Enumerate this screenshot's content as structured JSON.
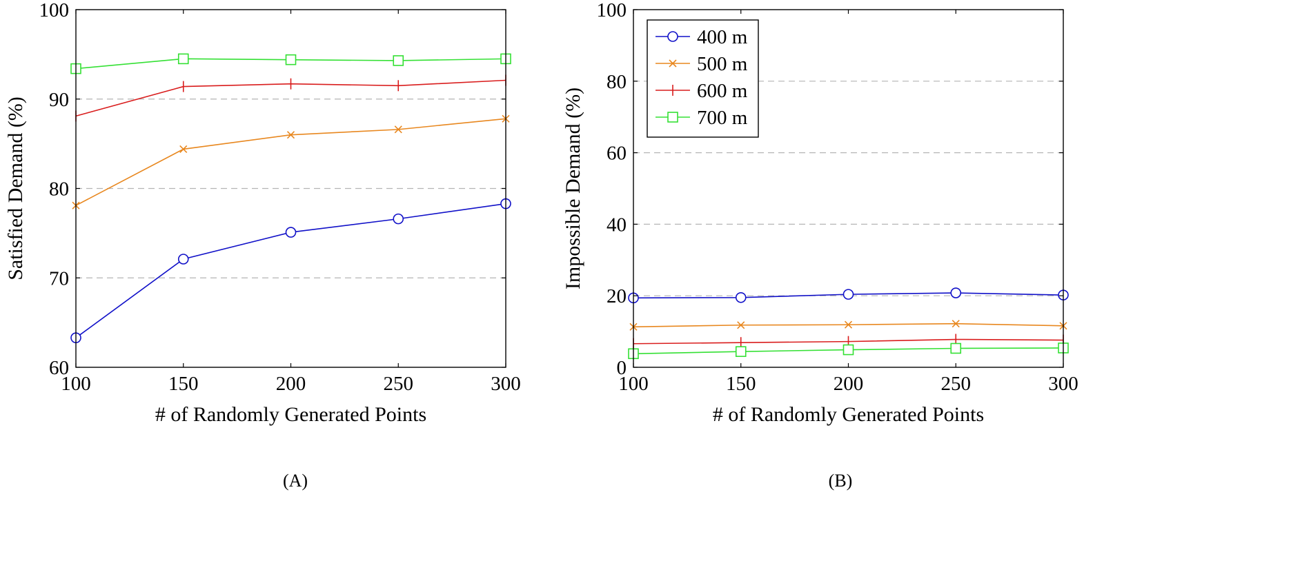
{
  "colors": {
    "400 m": "#1010c8",
    "500 m": "#e8871e",
    "600 m": "#d91c1c",
    "700 m": "#33e033",
    "grid": "#b4b4b4",
    "axis": "#000000"
  },
  "chart_data": [
    {
      "type": "line",
      "caption": "(A)",
      "xlabel": "# of Randomly Generated Points",
      "ylabel": "Satisfied Demand (%)",
      "x": [
        100,
        150,
        200,
        250,
        300
      ],
      "xlim": [
        100,
        300
      ],
      "ylim": [
        60,
        100
      ],
      "xticks": [
        100,
        150,
        200,
        250,
        300
      ],
      "yticks": [
        60,
        70,
        80,
        90,
        100
      ],
      "grid": "horizontal dashed",
      "legend": "none",
      "series": [
        {
          "name": "400 m",
          "marker": "circle",
          "values": [
            63.3,
            72.1,
            75.1,
            76.6,
            78.3
          ]
        },
        {
          "name": "500 m",
          "marker": "x",
          "values": [
            78.1,
            84.4,
            86.0,
            86.6,
            87.8
          ]
        },
        {
          "name": "600 m",
          "marker": "plus",
          "values": [
            88.1,
            91.4,
            91.7,
            91.5,
            92.1
          ]
        },
        {
          "name": "700 m",
          "marker": "square",
          "values": [
            93.4,
            94.5,
            94.4,
            94.3,
            94.5
          ]
        }
      ]
    },
    {
      "type": "line",
      "caption": "(B)",
      "xlabel": "# of Randomly Generated Points",
      "ylabel": "Impossible Demand (%)",
      "x": [
        100,
        150,
        200,
        250,
        300
      ],
      "xlim": [
        100,
        300
      ],
      "ylim": [
        0,
        100
      ],
      "xticks": [
        100,
        150,
        200,
        250,
        300
      ],
      "yticks": [
        0,
        20,
        40,
        60,
        80,
        100
      ],
      "grid": "horizontal dashed",
      "legend": "top-left",
      "series": [
        {
          "name": "400 m",
          "marker": "circle",
          "values": [
            19.4,
            19.5,
            20.4,
            20.8,
            20.2
          ]
        },
        {
          "name": "500 m",
          "marker": "x",
          "values": [
            11.3,
            11.8,
            11.9,
            12.2,
            11.6
          ]
        },
        {
          "name": "600 m",
          "marker": "plus",
          "values": [
            6.6,
            6.9,
            7.2,
            7.8,
            7.6
          ]
        },
        {
          "name": "700 m",
          "marker": "square",
          "values": [
            3.8,
            4.4,
            4.9,
            5.3,
            5.4
          ]
        }
      ]
    }
  ]
}
